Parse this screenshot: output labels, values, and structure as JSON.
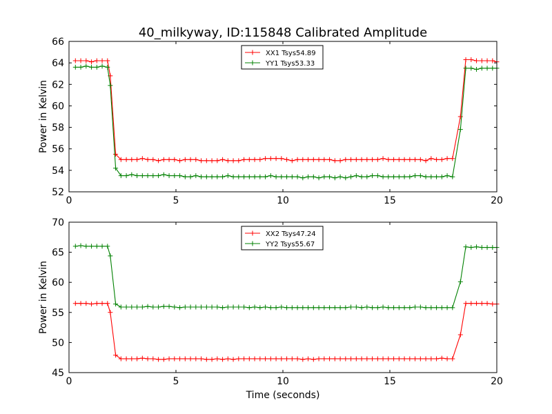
{
  "figure": {
    "title": "40_milkyway, ID:115848 Calibrated Amplitude"
  },
  "colors": {
    "red": "#ff0000",
    "green": "#008000"
  },
  "chart_data": [
    {
      "type": "line",
      "title": "40_milkyway, ID:115848 Calibrated Amplitude",
      "xlabel": "",
      "ylabel": "Power in Kelvin",
      "xlim": [
        0,
        20
      ],
      "ylim": [
        52,
        66
      ],
      "xticks": [
        0,
        5,
        10,
        15,
        20
      ],
      "yticks": [
        52,
        54,
        56,
        58,
        60,
        62,
        64,
        66
      ],
      "xtick_labels": [
        "0",
        "5",
        "10",
        "15",
        "20"
      ],
      "ytick_labels": [
        "52",
        "54",
        "56",
        "58",
        "60",
        "62",
        "64",
        "66"
      ],
      "legend_position": "top-center",
      "grid": false,
      "x": [
        0.3,
        0.55,
        0.8,
        1.05,
        1.3,
        1.55,
        1.8,
        1.93,
        2.18,
        2.43,
        2.68,
        2.93,
        3.18,
        3.43,
        3.68,
        3.93,
        4.18,
        4.43,
        4.68,
        4.93,
        5.18,
        5.43,
        5.68,
        5.93,
        6.18,
        6.43,
        6.68,
        6.93,
        7.18,
        7.43,
        7.68,
        7.93,
        8.18,
        8.43,
        8.68,
        8.93,
        9.18,
        9.43,
        9.68,
        9.93,
        10.18,
        10.43,
        10.68,
        10.93,
        11.18,
        11.43,
        11.68,
        11.93,
        12.18,
        12.43,
        12.68,
        12.93,
        13.18,
        13.43,
        13.68,
        13.93,
        14.18,
        14.43,
        14.68,
        14.93,
        15.18,
        15.43,
        15.68,
        15.93,
        16.18,
        16.43,
        16.68,
        16.93,
        17.18,
        17.43,
        17.68,
        17.93,
        18.3,
        18.55,
        18.8,
        19.05,
        19.3,
        19.55,
        19.8,
        20.0
      ],
      "series": [
        {
          "name": "XX1 Tsys54.89",
          "color": "#ff0000",
          "values": [
            64.2,
            64.2,
            64.2,
            64.1,
            64.2,
            64.2,
            64.2,
            62.8,
            55.5,
            55.0,
            55.0,
            55.0,
            55.0,
            55.1,
            55.0,
            55.0,
            54.9,
            55.0,
            55.0,
            55.0,
            54.9,
            55.0,
            55.0,
            55.0,
            54.9,
            54.9,
            54.9,
            54.9,
            55.0,
            54.9,
            54.9,
            54.9,
            55.0,
            55.0,
            55.0,
            55.0,
            55.1,
            55.1,
            55.1,
            55.1,
            55.0,
            54.9,
            55.0,
            55.0,
            55.0,
            55.0,
            55.0,
            55.0,
            55.0,
            54.9,
            54.9,
            55.0,
            55.0,
            55.0,
            55.0,
            55.0,
            55.0,
            55.0,
            55.1,
            55.0,
            55.0,
            55.0,
            55.0,
            55.0,
            55.0,
            55.0,
            54.9,
            55.1,
            55.0,
            55.0,
            55.1,
            55.1,
            59.0,
            64.3,
            64.3,
            64.2,
            64.2,
            64.2,
            64.2,
            64.1
          ]
        },
        {
          "name": "YY1 Tsys53.33",
          "color": "#008000",
          "values": [
            63.6,
            63.6,
            63.7,
            63.6,
            63.6,
            63.7,
            63.6,
            61.9,
            54.2,
            53.5,
            53.5,
            53.6,
            53.5,
            53.5,
            53.5,
            53.5,
            53.5,
            53.6,
            53.5,
            53.5,
            53.5,
            53.4,
            53.4,
            53.5,
            53.4,
            53.4,
            53.4,
            53.4,
            53.4,
            53.5,
            53.4,
            53.4,
            53.4,
            53.4,
            53.4,
            53.4,
            53.4,
            53.5,
            53.4,
            53.4,
            53.4,
            53.4,
            53.4,
            53.3,
            53.4,
            53.4,
            53.3,
            53.4,
            53.4,
            53.3,
            53.4,
            53.3,
            53.4,
            53.5,
            53.4,
            53.4,
            53.5,
            53.5,
            53.4,
            53.4,
            53.4,
            53.4,
            53.4,
            53.4,
            53.5,
            53.5,
            53.4,
            53.4,
            53.4,
            53.4,
            53.5,
            53.4,
            57.8,
            63.5,
            63.5,
            63.4,
            63.5,
            63.5,
            63.5,
            63.5
          ]
        }
      ]
    },
    {
      "type": "line",
      "title": "",
      "xlabel": "Time (seconds)",
      "ylabel": "Power in Kelvin",
      "xlim": [
        0,
        20
      ],
      "ylim": [
        45,
        70
      ],
      "xticks": [
        0,
        5,
        10,
        15,
        20
      ],
      "yticks": [
        45,
        50,
        55,
        60,
        65,
        70
      ],
      "xtick_labels": [
        "0",
        "5",
        "10",
        "15",
        "20"
      ],
      "ytick_labels": [
        "45",
        "50",
        "55",
        "60",
        "65",
        "70"
      ],
      "legend_position": "top-center",
      "grid": false,
      "x": [
        0.3,
        0.55,
        0.8,
        1.05,
        1.3,
        1.55,
        1.8,
        1.93,
        2.18,
        2.43,
        2.68,
        2.93,
        3.18,
        3.43,
        3.68,
        3.93,
        4.18,
        4.43,
        4.68,
        4.93,
        5.18,
        5.43,
        5.68,
        5.93,
        6.18,
        6.43,
        6.68,
        6.93,
        7.18,
        7.43,
        7.68,
        7.93,
        8.18,
        8.43,
        8.68,
        8.93,
        9.18,
        9.43,
        9.68,
        9.93,
        10.18,
        10.43,
        10.68,
        10.93,
        11.18,
        11.43,
        11.68,
        11.93,
        12.18,
        12.43,
        12.68,
        12.93,
        13.18,
        13.43,
        13.68,
        13.93,
        14.18,
        14.43,
        14.68,
        14.93,
        15.18,
        15.43,
        15.68,
        15.93,
        16.18,
        16.43,
        16.68,
        16.93,
        17.18,
        17.43,
        17.68,
        17.93,
        18.3,
        18.55,
        18.8,
        19.05,
        19.3,
        19.55,
        19.8,
        20.0
      ],
      "series": [
        {
          "name": "XX2 Tsys47.24",
          "color": "#ff0000",
          "values": [
            56.5,
            56.5,
            56.5,
            56.4,
            56.5,
            56.5,
            56.5,
            55.0,
            47.9,
            47.3,
            47.3,
            47.3,
            47.3,
            47.4,
            47.3,
            47.3,
            47.2,
            47.2,
            47.3,
            47.3,
            47.3,
            47.3,
            47.3,
            47.3,
            47.3,
            47.2,
            47.2,
            47.3,
            47.2,
            47.3,
            47.2,
            47.3,
            47.3,
            47.3,
            47.3,
            47.3,
            47.3,
            47.3,
            47.3,
            47.3,
            47.3,
            47.3,
            47.3,
            47.2,
            47.3,
            47.2,
            47.3,
            47.3,
            47.3,
            47.3,
            47.3,
            47.3,
            47.3,
            47.3,
            47.3,
            47.3,
            47.3,
            47.3,
            47.3,
            47.3,
            47.3,
            47.3,
            47.3,
            47.3,
            47.3,
            47.3,
            47.3,
            47.3,
            47.3,
            47.4,
            47.3,
            47.3,
            51.3,
            56.5,
            56.5,
            56.5,
            56.5,
            56.5,
            56.4,
            56.4
          ]
        },
        {
          "name": "YY2 Tsys55.67",
          "color": "#008000",
          "values": [
            66.0,
            66.1,
            66.0,
            66.0,
            66.0,
            66.0,
            66.0,
            64.4,
            56.4,
            55.9,
            55.9,
            55.9,
            55.9,
            55.9,
            56.0,
            55.9,
            55.9,
            56.0,
            56.0,
            55.9,
            55.8,
            55.9,
            55.9,
            55.9,
            55.9,
            55.9,
            55.9,
            55.9,
            55.8,
            55.9,
            55.9,
            55.9,
            55.9,
            55.8,
            55.9,
            55.8,
            55.9,
            55.8,
            55.8,
            55.9,
            55.8,
            55.8,
            55.8,
            55.8,
            55.8,
            55.8,
            55.8,
            55.8,
            55.8,
            55.8,
            55.8,
            55.8,
            55.9,
            55.9,
            55.8,
            55.9,
            55.8,
            55.8,
            55.9,
            55.8,
            55.8,
            55.8,
            55.8,
            55.8,
            55.9,
            55.9,
            55.8,
            55.8,
            55.8,
            55.8,
            55.8,
            55.8,
            60.1,
            65.9,
            65.8,
            65.9,
            65.8,
            65.8,
            65.8,
            65.8
          ]
        }
      ]
    }
  ]
}
